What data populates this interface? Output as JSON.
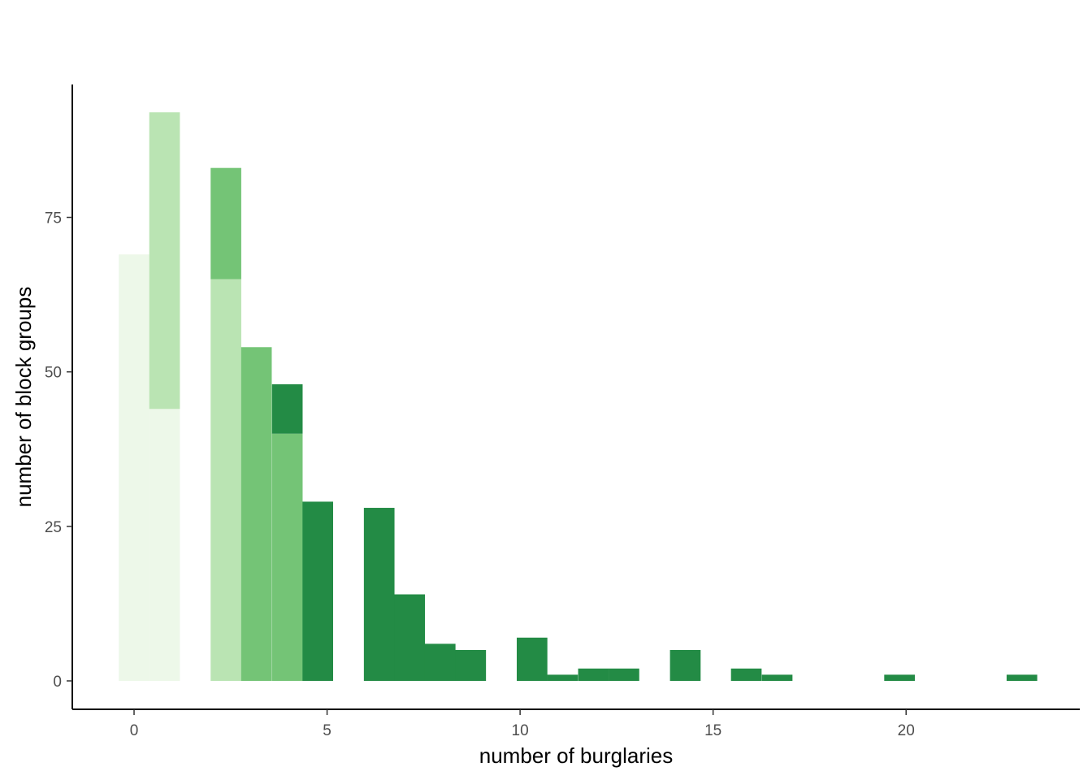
{
  "chart_data": {
    "type": "bar",
    "stacked": true,
    "xlabel": "number of burglaries",
    "ylabel": "number of block groups",
    "xlim": [
      -1.6,
      24.5
    ],
    "ylim": [
      -4.6,
      96.5
    ],
    "x_ticks": [
      0,
      5,
      10,
      15,
      20
    ],
    "y_ticks": [
      0,
      25,
      50,
      75
    ],
    "bin_width": 0.7931,
    "grid": false,
    "legend": "none",
    "colors": [
      "#edf8e9",
      "#bae4b3",
      "#74c476",
      "#238b45"
    ],
    "bins": [
      {
        "x": 0.0,
        "values": [
          69,
          0,
          0,
          0
        ]
      },
      {
        "x": 0.79,
        "values": [
          44,
          48,
          0,
          0
        ]
      },
      {
        "x": 2.38,
        "values": [
          0,
          65,
          18,
          0
        ]
      },
      {
        "x": 3.17,
        "values": [
          0,
          0,
          54,
          0
        ]
      },
      {
        "x": 3.97,
        "values": [
          0,
          0,
          40,
          8
        ]
      },
      {
        "x": 4.76,
        "values": [
          0,
          0,
          0,
          29
        ]
      },
      {
        "x": 6.35,
        "values": [
          0,
          0,
          0,
          28
        ]
      },
      {
        "x": 7.14,
        "values": [
          0,
          0,
          0,
          14
        ]
      },
      {
        "x": 7.93,
        "values": [
          0,
          0,
          0,
          6
        ]
      },
      {
        "x": 8.72,
        "values": [
          0,
          0,
          0,
          5
        ]
      },
      {
        "x": 10.31,
        "values": [
          0,
          0,
          0,
          7
        ]
      },
      {
        "x": 11.1,
        "values": [
          0,
          0,
          0,
          1
        ]
      },
      {
        "x": 11.9,
        "values": [
          0,
          0,
          0,
          2
        ]
      },
      {
        "x": 12.69,
        "values": [
          0,
          0,
          0,
          2
        ]
      },
      {
        "x": 14.28,
        "values": [
          0,
          0,
          0,
          5
        ]
      },
      {
        "x": 15.86,
        "values": [
          0,
          0,
          0,
          2
        ]
      },
      {
        "x": 16.66,
        "values": [
          0,
          0,
          0,
          1
        ]
      },
      {
        "x": 19.83,
        "values": [
          0,
          0,
          0,
          1
        ]
      },
      {
        "x": 23.0,
        "values": [
          0,
          0,
          0,
          1
        ]
      }
    ]
  }
}
